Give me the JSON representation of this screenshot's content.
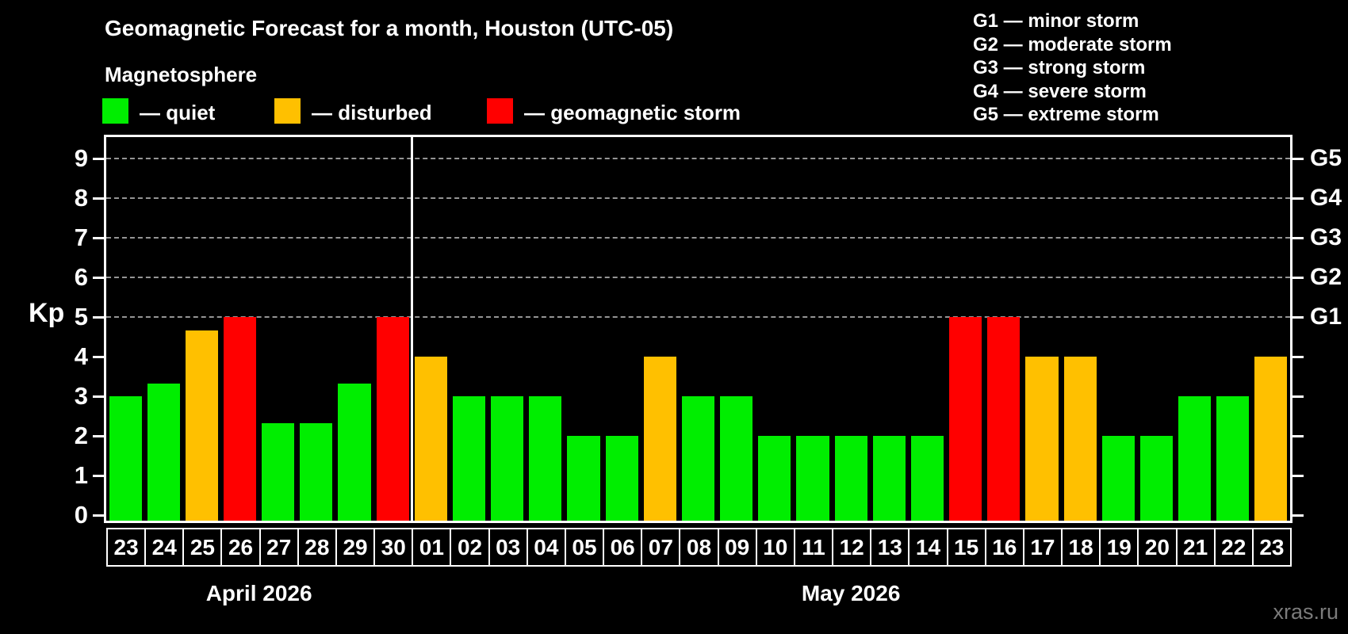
{
  "title": "Geomagnetic Forecast for a month, Houston (UTC-05)",
  "subtitle": "Magnetosphere",
  "legend": {
    "quiet_label": "— quiet",
    "disturbed_label": "— disturbed",
    "storm_label": "— geomagnetic storm"
  },
  "g_scale_legend": [
    "G1 — minor storm",
    "G2 — moderate storm",
    "G3 — strong storm",
    "G4 — severe storm",
    "G5 — extreme storm"
  ],
  "watermark": "xras.ru",
  "colors": {
    "quiet": "#00ee00",
    "disturbed": "#ffc000",
    "storm": "#ff0000",
    "gridline": "#959595",
    "axis": "#ffffff",
    "watermark": "#7b7b7b"
  },
  "chart_data": {
    "type": "bar",
    "title": "Geomagnetic Forecast for a month, Houston (UTC-05)",
    "subtitle": "Magnetosphere",
    "ylabel": "Kp",
    "ylim": [
      0,
      9
    ],
    "grid": "dashed horizontal lines at Kp 5-9 only",
    "legend_position": "top",
    "y_axis_ticks": [
      "0",
      "1",
      "2",
      "3",
      "4",
      "5",
      "6",
      "7",
      "8",
      "9"
    ],
    "right_axis_labels": [
      {
        "kp": 5,
        "label": "G1"
      },
      {
        "kp": 6,
        "label": "G2"
      },
      {
        "kp": 7,
        "label": "G3"
      },
      {
        "kp": 8,
        "label": "G4"
      },
      {
        "kp": 9,
        "label": "G5"
      }
    ],
    "months": [
      {
        "label": "April 2026",
        "start_index": 0,
        "days": 8
      },
      {
        "label": "May 2026",
        "start_index": 8,
        "days": 23
      }
    ],
    "points": [
      {
        "day": "23",
        "kp": 3.0,
        "level": "quiet"
      },
      {
        "day": "24",
        "kp": 3.33,
        "level": "quiet"
      },
      {
        "day": "25",
        "kp": 4.67,
        "level": "disturbed"
      },
      {
        "day": "26",
        "kp": 5.0,
        "level": "storm"
      },
      {
        "day": "27",
        "kp": 2.33,
        "level": "quiet"
      },
      {
        "day": "28",
        "kp": 2.33,
        "level": "quiet"
      },
      {
        "day": "29",
        "kp": 3.33,
        "level": "quiet"
      },
      {
        "day": "30",
        "kp": 5.0,
        "level": "storm"
      },
      {
        "day": "01",
        "kp": 4.0,
        "level": "disturbed"
      },
      {
        "day": "02",
        "kp": 3.0,
        "level": "quiet"
      },
      {
        "day": "03",
        "kp": 3.0,
        "level": "quiet"
      },
      {
        "day": "04",
        "kp": 3.0,
        "level": "quiet"
      },
      {
        "day": "05",
        "kp": 2.0,
        "level": "quiet"
      },
      {
        "day": "06",
        "kp": 2.0,
        "level": "quiet"
      },
      {
        "day": "07",
        "kp": 4.0,
        "level": "disturbed"
      },
      {
        "day": "08",
        "kp": 3.0,
        "level": "quiet"
      },
      {
        "day": "09",
        "kp": 3.0,
        "level": "quiet"
      },
      {
        "day": "10",
        "kp": 2.0,
        "level": "quiet"
      },
      {
        "day": "11",
        "kp": 2.0,
        "level": "quiet"
      },
      {
        "day": "12",
        "kp": 2.0,
        "level": "quiet"
      },
      {
        "day": "13",
        "kp": 2.0,
        "level": "quiet"
      },
      {
        "day": "14",
        "kp": 2.0,
        "level": "quiet"
      },
      {
        "day": "15",
        "kp": 5.0,
        "level": "storm"
      },
      {
        "day": "16",
        "kp": 5.0,
        "level": "storm"
      },
      {
        "day": "17",
        "kp": 4.0,
        "level": "disturbed"
      },
      {
        "day": "18",
        "kp": 4.0,
        "level": "disturbed"
      },
      {
        "day": "19",
        "kp": 2.0,
        "level": "quiet"
      },
      {
        "day": "20",
        "kp": 2.0,
        "level": "quiet"
      },
      {
        "day": "21",
        "kp": 3.0,
        "level": "quiet"
      },
      {
        "day": "22",
        "kp": 3.0,
        "level": "quiet"
      },
      {
        "day": "23",
        "kp": 4.0,
        "level": "disturbed"
      }
    ]
  }
}
